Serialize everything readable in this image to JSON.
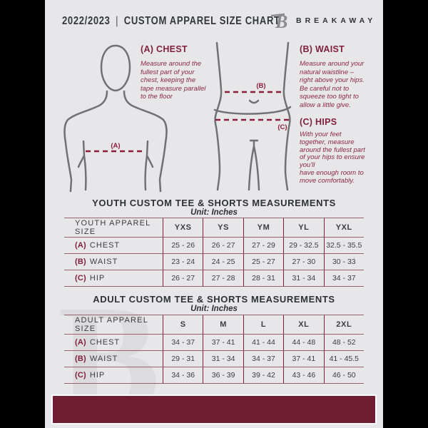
{
  "header": {
    "year": "2022/2023",
    "separator": "|",
    "title": "CUSTOM APPAREL SIZE CHART",
    "brand": "BREAKAWAY",
    "logo_glyph": "B"
  },
  "instructions": [
    {
      "heading": "(A) CHEST",
      "marker_label": "(A)",
      "body": "Measure around the\nfullest part of your\nchest, keeping the\ntape measure parallel\nto the floor"
    },
    {
      "heading": "(B) WAIST",
      "marker_label": "(B)",
      "body": "Measure around your\nnatural waistline –\nright above your hips.\nBe careful not to\nsqueeze too tight to\nallow a little give."
    },
    {
      "heading": "(C) HIPS",
      "marker_label": "(C)",
      "body": "With your feet\ntogether, measure\naround the fullest part\nof your hips to ensure\nyou'll\nhave enough room to\nmove comfortably."
    }
  ],
  "tables": {
    "youth": {
      "title": "YOUTH CUSTOM TEE & SHORTS MEASUREMENTS",
      "unit": "Unit: Inches",
      "header": [
        "YOUTH APPAREL SIZE",
        "YXS",
        "YS",
        "YM",
        "YL",
        "YXL"
      ],
      "rows": [
        {
          "prefix": "(A)",
          "label": "CHEST",
          "values": [
            "25 - 26",
            "26 - 27",
            "27 - 29",
            "29 - 32.5",
            "32.5 - 35.5"
          ]
        },
        {
          "prefix": "(B)",
          "label": "WAIST",
          "values": [
            "23 - 24",
            "24 - 25",
            "25 - 27",
            "27 - 30",
            "30 - 33"
          ]
        },
        {
          "prefix": "(C)",
          "label": "HIP",
          "values": [
            "26 - 27",
            "27 - 28",
            "28 - 31",
            "31 - 34",
            "34 - 37"
          ]
        }
      ]
    },
    "adult": {
      "title": "ADULT CUSTOM TEE & SHORTS MEASUREMENTS",
      "unit": "Unit: Inches",
      "header": [
        "ADULT APPAREL SIZE",
        "S",
        "M",
        "L",
        "XL",
        "2XL"
      ],
      "rows": [
        {
          "prefix": "(A)",
          "label": "CHEST",
          "values": [
            "34 - 37",
            "37 - 41",
            "41 - 44",
            "44 - 48",
            "48 - 52"
          ]
        },
        {
          "prefix": "(B)",
          "label": "WAIST",
          "values": [
            "29 - 31",
            "31 - 34",
            "34 - 37",
            "37 - 41",
            "41 - 45.5"
          ]
        },
        {
          "prefix": "(C)",
          "label": "HIP",
          "values": [
            "34 - 36",
            "36 - 39",
            "39 - 42",
            "43 - 46",
            "46 - 50"
          ]
        }
      ]
    }
  },
  "watermark_glyph": "B",
  "colors": {
    "maroon": "#80203c",
    "footer_bar": "#6f1d33",
    "dash_line": "#8c1e3c",
    "page_background": "#e7e7e9",
    "side_bars": "#000000",
    "ink": "#33383c"
  }
}
